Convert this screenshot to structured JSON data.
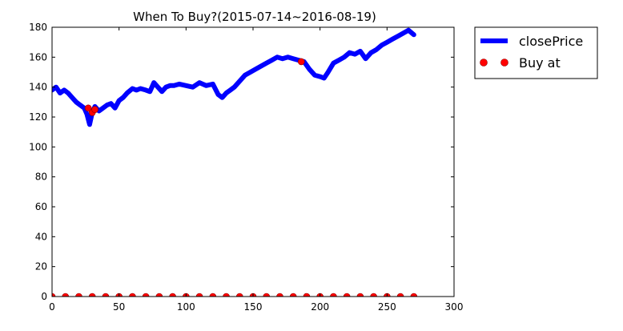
{
  "chart_data": {
    "type": "line",
    "title": "When To Buy?(2015-07-14~2016-08-19)",
    "xlabel": "",
    "ylabel": "",
    "xlim": [
      0,
      300
    ],
    "ylim": [
      0,
      180
    ],
    "xticks": [
      "0",
      "50",
      "100",
      "150",
      "200",
      "250",
      "300"
    ],
    "yticks": [
      "0",
      "20",
      "40",
      "60",
      "80",
      "100",
      "120",
      "140",
      "160",
      "180"
    ],
    "grid": false,
    "legend_placement": "outside-top-right",
    "series": [
      {
        "name": "closePrice",
        "kind": "line",
        "color": "#0000ff",
        "x": [
          0,
          3,
          6,
          9,
          12,
          15,
          18,
          21,
          24,
          26,
          28,
          30,
          32,
          35,
          38,
          41,
          44,
          47,
          50,
          53,
          56,
          60,
          63,
          66,
          70,
          73,
          76,
          79,
          82,
          85,
          88,
          91,
          95,
          100,
          105,
          110,
          115,
          120,
          124,
          127,
          130,
          133,
          136,
          140,
          144,
          148,
          152,
          156,
          160,
          164,
          168,
          172,
          176,
          180,
          184,
          188,
          192,
          196,
          200,
          203,
          206,
          210,
          214,
          218,
          222,
          226,
          230,
          234,
          238,
          242,
          246,
          250,
          254,
          258,
          262,
          266,
          270
        ],
        "y": [
          138,
          140,
          136,
          138,
          136,
          133,
          130,
          128,
          126,
          122,
          115,
          123,
          127,
          124,
          126,
          128,
          129,
          126,
          131,
          133,
          136,
          139,
          138,
          139,
          138,
          137,
          143,
          140,
          137,
          140,
          141,
          141,
          142,
          141,
          140,
          143,
          141,
          142,
          135,
          133,
          136,
          138,
          140,
          144,
          148,
          150,
          152,
          154,
          156,
          158,
          160,
          159,
          160,
          159,
          158,
          157,
          152,
          148,
          147,
          146,
          150,
          156,
          158,
          160,
          163,
          162,
          164,
          159,
          163,
          165,
          168,
          170,
          172,
          174,
          176,
          178,
          175
        ]
      },
      {
        "name": "Buy at",
        "kind": "scatter",
        "color": "#ff0000",
        "x": [
          0,
          10,
          20,
          30,
          40,
          50,
          60,
          70,
          80,
          90,
          100,
          110,
          120,
          130,
          140,
          150,
          160,
          170,
          180,
          190,
          200,
          210,
          220,
          230,
          240,
          250,
          260,
          270,
          27,
          30,
          32,
          186
        ],
        "y": [
          0,
          0,
          0,
          0,
          0,
          0,
          0,
          0,
          0,
          0,
          0,
          0,
          0,
          0,
          0,
          0,
          0,
          0,
          0,
          0,
          0,
          0,
          0,
          0,
          0,
          0,
          0,
          0,
          126,
          123,
          125,
          157
        ]
      }
    ]
  }
}
